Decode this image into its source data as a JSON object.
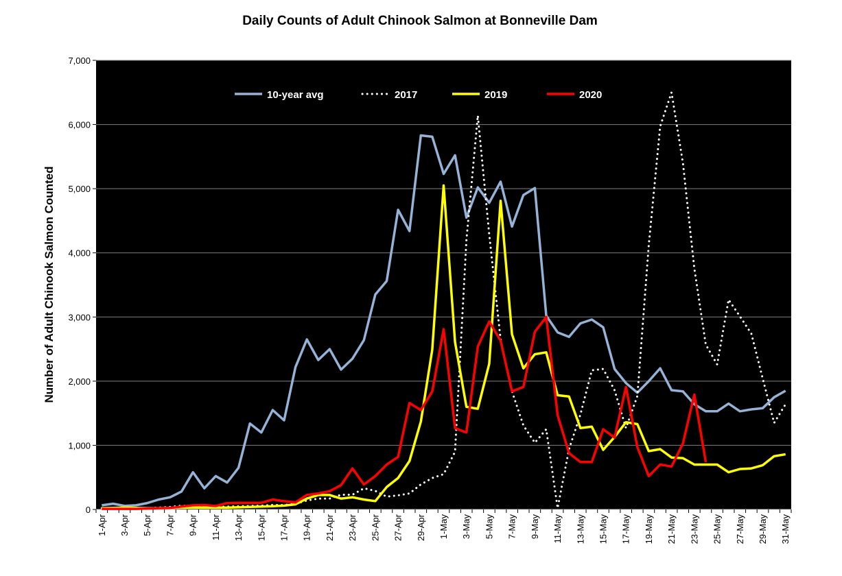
{
  "chart_data": {
    "type": "line",
    "title": "Daily Counts of Adult Chinook Salmon at Bonneville Dam",
    "xlabel": "",
    "ylabel": "Number of Adult Chinook Salmon Counted",
    "ylim": [
      0,
      7000
    ],
    "yticks": [
      0,
      1000,
      2000,
      3000,
      4000,
      5000,
      6000,
      7000
    ],
    "ytick_labels": [
      "0",
      "1,000",
      "2,000",
      "3,000",
      "4,000",
      "5,000",
      "6,000",
      "7,000"
    ],
    "grid": true,
    "legend_position": "top-inside",
    "background": "#000000",
    "categories": [
      "1-Apr",
      "2-Apr",
      "3-Apr",
      "4-Apr",
      "5-Apr",
      "6-Apr",
      "7-Apr",
      "8-Apr",
      "9-Apr",
      "10-Apr",
      "11-Apr",
      "12-Apr",
      "13-Apr",
      "14-Apr",
      "15-Apr",
      "16-Apr",
      "17-Apr",
      "18-Apr",
      "19-Apr",
      "20-Apr",
      "21-Apr",
      "22-Apr",
      "23-Apr",
      "24-Apr",
      "25-Apr",
      "26-Apr",
      "27-Apr",
      "28-Apr",
      "29-Apr",
      "30-Apr",
      "1-May",
      "2-May",
      "3-May",
      "4-May",
      "5-May",
      "6-May",
      "7-May",
      "8-May",
      "9-May",
      "10-May",
      "11-May",
      "12-May",
      "13-May",
      "14-May",
      "15-May",
      "16-May",
      "17-May",
      "18-May",
      "19-May",
      "20-May",
      "21-May",
      "22-May",
      "23-May",
      "24-May",
      "25-May",
      "26-May",
      "27-May",
      "28-May",
      "29-May",
      "30-May",
      "31-May"
    ],
    "xtick_labels": [
      "1-Apr",
      "3-Apr",
      "5-Apr",
      "7-Apr",
      "9-Apr",
      "11-Apr",
      "13-Apr",
      "15-Apr",
      "17-Apr",
      "19-Apr",
      "21-Apr",
      "23-Apr",
      "25-Apr",
      "27-Apr",
      "29-Apr",
      "1-May",
      "3-May",
      "5-May",
      "7-May",
      "9-May",
      "11-May",
      "13-May",
      "15-May",
      "17-May",
      "19-May",
      "21-May",
      "23-May",
      "25-May",
      "27-May",
      "29-May",
      "31-May"
    ],
    "series": [
      {
        "name": "10-year avg",
        "color": "#95b3d7",
        "style": "solid",
        "values": [
          65,
          90,
          57,
          65,
          100,
          155,
          190,
          280,
          580,
          330,
          520,
          420,
          650,
          1340,
          1200,
          1550,
          1390,
          2220,
          2650,
          2330,
          2500,
          2180,
          2350,
          2640,
          3350,
          3560,
          4670,
          4340,
          5830,
          5810,
          5230,
          5520,
          4550,
          5020,
          4780,
          5110,
          4410,
          4900,
          5010,
          3020,
          2760,
          2690,
          2900,
          2960,
          2840,
          2190,
          1970,
          1820,
          2000,
          2200,
          1860,
          1840,
          1640,
          1530,
          1530,
          1650,
          1530,
          1560,
          1580,
          1750,
          1850
        ]
      },
      {
        "name": "2017",
        "color": "#ffffff",
        "style": "dotted",
        "values": [
          20,
          20,
          20,
          20,
          20,
          30,
          40,
          60,
          50,
          35,
          40,
          45,
          50,
          55,
          60,
          70,
          70,
          90,
          140,
          170,
          170,
          230,
          230,
          330,
          290,
          200,
          220,
          250,
          390,
          490,
          550,
          900,
          4200,
          6140,
          4290,
          2650,
          1840,
          1310,
          1040,
          1250,
          20,
          940,
          1480,
          2170,
          2190,
          1860,
          1270,
          1770,
          4120,
          5970,
          6500,
          5400,
          3760,
          2570,
          2260,
          3270,
          3010,
          2740,
          2040,
          1350,
          1640
        ]
      },
      {
        "name": "2019",
        "color": "#ffff00",
        "style": "solid",
        "values": [
          20,
          25,
          30,
          25,
          20,
          20,
          25,
          30,
          30,
          30,
          30,
          30,
          35,
          40,
          45,
          50,
          60,
          80,
          170,
          225,
          225,
          170,
          190,
          155,
          130,
          350,
          490,
          755,
          1370,
          2490,
          5050,
          2610,
          1600,
          1570,
          2270,
          4810,
          2730,
          2200,
          2420,
          2450,
          1780,
          1760,
          1270,
          1290,
          930,
          1130,
          1360,
          1330,
          910,
          940,
          810,
          800,
          700,
          700,
          700,
          580,
          630,
          640,
          690,
          830,
          860
        ]
      },
      {
        "name": "2020",
        "color": "#ff0000",
        "style": "solid",
        "values": [
          10,
          10,
          10,
          10,
          15,
          20,
          25,
          45,
          65,
          70,
          55,
          100,
          105,
          105,
          105,
          155,
          130,
          110,
          225,
          250,
          285,
          380,
          640,
          390,
          520,
          700,
          820,
          1660,
          1550,
          1840,
          2810,
          1270,
          1200,
          2540,
          2930,
          2630,
          1840,
          1910,
          2770,
          3000,
          1470,
          880,
          740,
          740,
          1250,
          1120,
          1910,
          970,
          520,
          700,
          670,
          1030,
          1790,
          740,
          null,
          null,
          null,
          null,
          null,
          null,
          null
        ]
      }
    ]
  }
}
